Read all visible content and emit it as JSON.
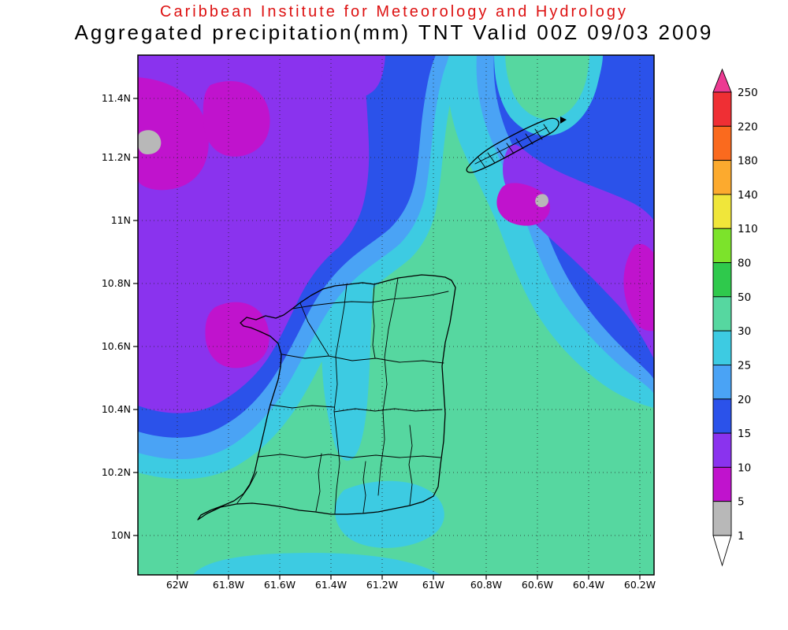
{
  "header": {
    "line1": "Caribbean Institute for Meteorology and Hydrology",
    "line1_color": "#dd1111",
    "line2": "Aggregated precipitation(mm) TNT Valid 00Z 09/03 2009"
  },
  "map": {
    "lat_labels": [
      "11.4N",
      "11.2N",
      "11N",
      "10.8N",
      "10.6N",
      "10.4N",
      "10.2N",
      "10N"
    ],
    "lon_labels": [
      "62W",
      "61.8W",
      "61.6W",
      "61.4W",
      "61.2W",
      "61W",
      "60.8W",
      "60.6W",
      "60.4W",
      "60.2W"
    ]
  },
  "colorbar": {
    "tick_labels_top_to_bottom": [
      "250",
      "220",
      "180",
      "140",
      "110",
      "80",
      "50",
      "30",
      "25",
      "20",
      "15",
      "10",
      "5",
      "1"
    ],
    "cell_levels_top_to_bottom": [
      "220-250",
      "180-220",
      "140-180",
      "110-140",
      "80-110",
      "50-80",
      "30-50",
      "25-30",
      "20-25",
      "15-20",
      "10-15",
      "5-10",
      "1-5"
    ],
    "above_max_color_key": "gt250",
    "below_min_color_key": "lt1"
  },
  "palette": {
    "lt1": "#ffffff",
    "1-5": "#b8b8b8",
    "5-10": "#c013cd",
    "10-15": "#8a33ee",
    "15-20": "#2b52ea",
    "20-25": "#4aa3f5",
    "25-30": "#3dcbe2",
    "30-50": "#56d7a0",
    "50-80": "#2fc94c",
    "80-110": "#7ce32b",
    "110-140": "#f0e63a",
    "140-180": "#fcaa2e",
    "180-220": "#fa6a1e",
    "220-250": "#ef2f34",
    "gt250": "#ec3a92"
  },
  "chart_data": {
    "type": "filled_contour_map",
    "title": "Aggregated precipitation(mm) TNT Valid 00Z 09/03 2009",
    "institution": "Caribbean Institute for Meteorology and Hydrology",
    "units": "mm",
    "region": "Trinidad and Tobago (TNT)",
    "valid_time": "00Z 09/03 2009",
    "lat_range": [
      "10N",
      "11.4N"
    ],
    "lon_range": [
      "62W",
      "60.2W"
    ],
    "contour_levels_mm": [
      1,
      5,
      10,
      15,
      20,
      25,
      30,
      50,
      80,
      110,
      140,
      180,
      220,
      250
    ],
    "palette_low_to_high": [
      "#ffffff",
      "#b8b8b8",
      "#c013cd",
      "#8a33ee",
      "#2b52ea",
      "#4aa3f5",
      "#3dcbe2",
      "#56d7a0",
      "#2fc94c",
      "#7ce32b",
      "#f0e63a",
      "#fcaa2e",
      "#fa6a1e",
      "#ef2f34",
      "#ec3a92"
    ],
    "grid": "dotted lat/lon graticule every 0.2 degrees",
    "legend_position": "right vertical colorbar with overflow arrows",
    "observations": [
      {
        "area": "southern and eastern half of domain around Trinidad",
        "value_mm": "30-50"
      },
      {
        "area": "central Trinidad tongue and patches south of the island and along bottom edge",
        "value_mm": "25-30"
      },
      {
        "area": "north-central domain descending from top edge",
        "value_mm": "15-20 ringed by 20-25 and 25-30"
      },
      {
        "area": "northwest quadrant",
        "value_mm": "10-15 with pockets of 5-10 and small 1-5 patches"
      },
      {
        "area": "southeast of Tobago and along right edge",
        "value_mm": "10-15 with 5-10 cores and a small 1-5 patch"
      },
      {
        "area": "top-right corner tongue",
        "value_mm": "30-50"
      }
    ]
  }
}
